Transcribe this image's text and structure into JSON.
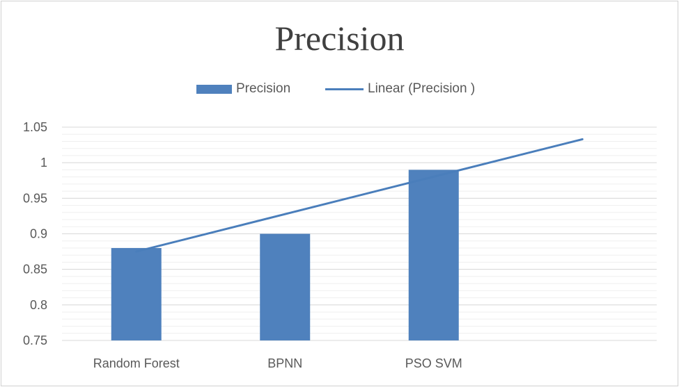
{
  "chart_data": {
    "type": "bar",
    "title": "Precision",
    "categories": [
      "Random Forest",
      "BPNN",
      "PSO SVM"
    ],
    "series": [
      {
        "name": "Precision",
        "type": "bar",
        "color": "#4f81bd",
        "values": [
          0.88,
          0.9,
          0.99
        ]
      },
      {
        "name": "Linear (Precision )",
        "type": "line",
        "trendline": "linear",
        "color": "#4a7ebb",
        "start": 0.875,
        "end": 1.033
      }
    ],
    "xlabel": "",
    "ylabel": "",
    "ylim": [
      0.75,
      1.05
    ],
    "yticks": [
      "0.75",
      "0.8",
      "0.85",
      "0.9",
      "0.95",
      "1",
      "1.05"
    ],
    "grid": {
      "major": true,
      "minor": true
    },
    "legend_position": "top"
  },
  "legend": {
    "bar_label": "Precision",
    "line_label": "Linear (Precision )"
  }
}
